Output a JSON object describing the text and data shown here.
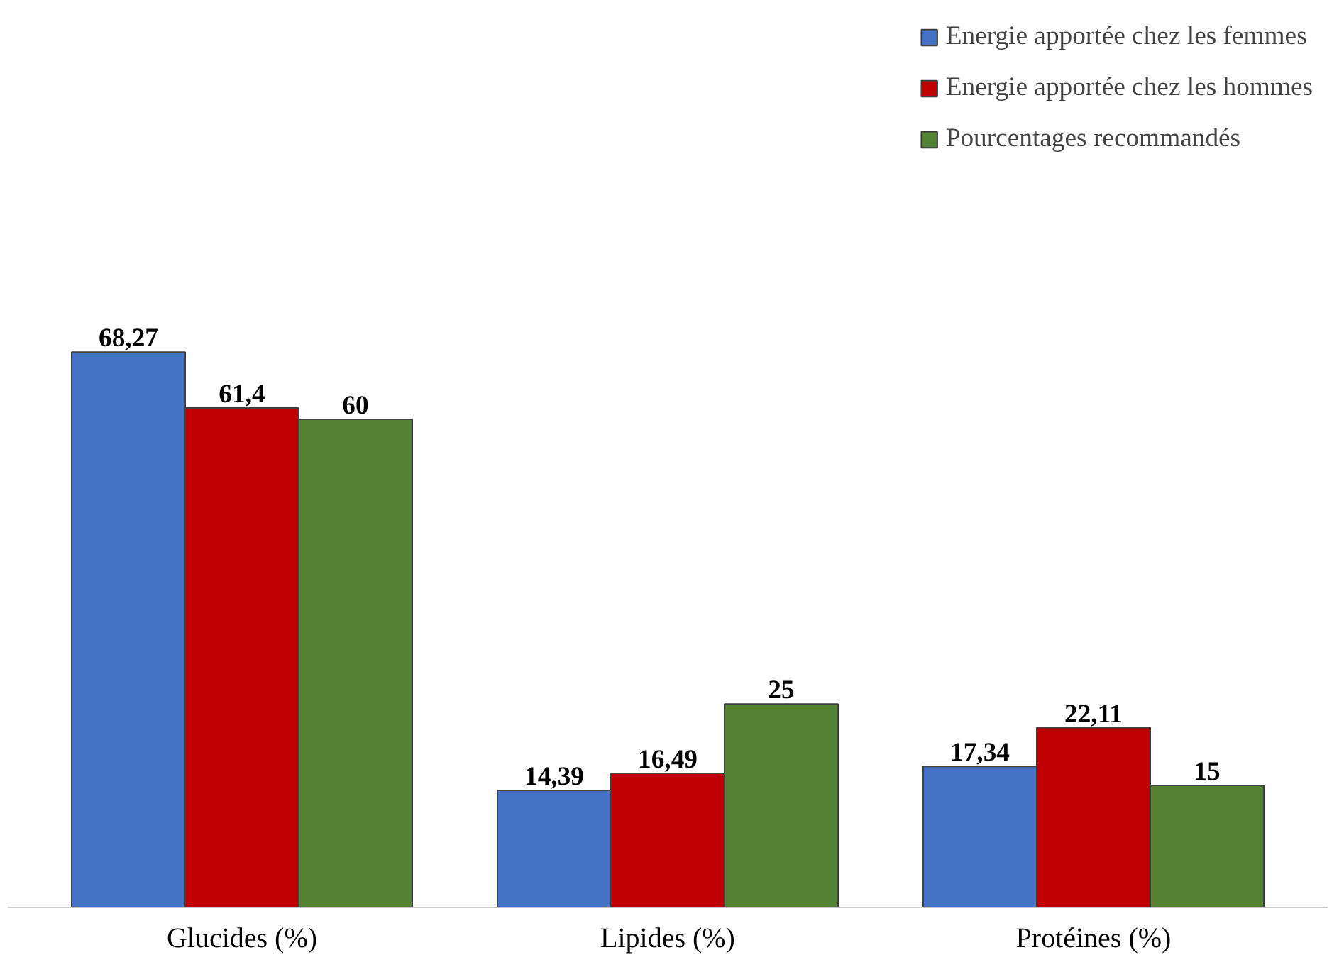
{
  "chart_data": {
    "type": "bar",
    "categories": [
      "Glucides (%)",
      "Lipides (%)",
      "Protéines (%)"
    ],
    "series": [
      {
        "name": "Energie apportée chez les femmes",
        "color": "#4472c4",
        "values": [
          68.27,
          14.39,
          17.34
        ],
        "value_labels": [
          "68,27",
          "14,39",
          "17,34"
        ]
      },
      {
        "name": "Energie apportée chez les hommes",
        "color": "#c00000",
        "values": [
          61.4,
          16.49,
          22.11
        ],
        "value_labels": [
          "61,4",
          "16,49",
          "22,11"
        ]
      },
      {
        "name": "Pourcentages recommandés",
        "color": "#548235",
        "values": [
          60,
          25,
          15
        ],
        "value_labels": [
          "60",
          "25",
          "15"
        ]
      }
    ],
    "legend": "top right",
    "grid": false
  }
}
